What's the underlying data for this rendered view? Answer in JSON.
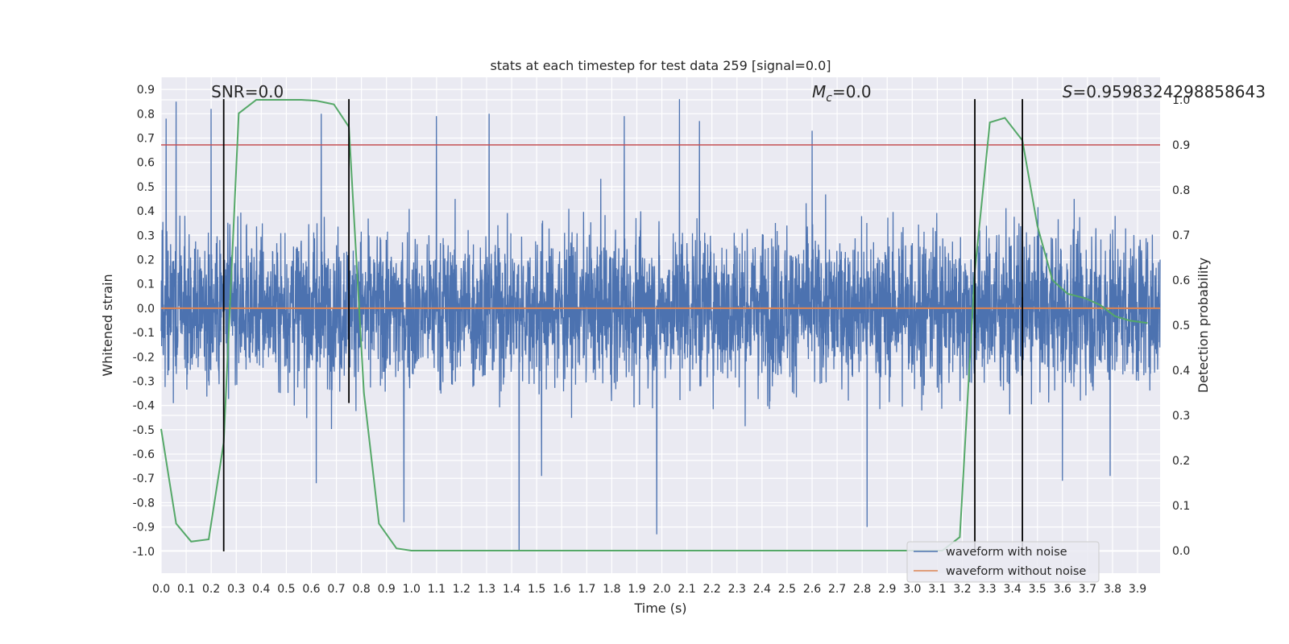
{
  "chart_data": {
    "type": "line",
    "title": "stats at each timestep for test data 259 [signal=0.0]",
    "xlabel": "Time (s)",
    "ylabel": "Whitened strain",
    "y2label": "Detection probability",
    "xlim": [
      0.0,
      3.99
    ],
    "ylim": [
      -1.09,
      0.95
    ],
    "y2lim": [
      -0.05,
      1.05
    ],
    "x_ticks": [
      "0.0",
      "0.1",
      "0.2",
      "0.3",
      "0.4",
      "0.5",
      "0.6",
      "0.7",
      "0.8",
      "0.9",
      "1.0",
      "1.1",
      "1.2",
      "1.3",
      "1.4",
      "1.5",
      "1.6",
      "1.7",
      "1.8",
      "1.9",
      "2.0",
      "2.1",
      "2.2",
      "2.3",
      "2.4",
      "2.5",
      "2.6",
      "2.7",
      "2.8",
      "2.9",
      "3.0",
      "3.1",
      "3.2",
      "3.3",
      "3.4",
      "3.5",
      "3.6",
      "3.7",
      "3.8",
      "3.9"
    ],
    "y_ticks": [
      "0.9",
      "0.8",
      "0.7",
      "0.6",
      "0.5",
      "0.4",
      "0.3",
      "0.2",
      "0.1",
      "0.0",
      "-0.1",
      "-0.2",
      "-0.3",
      "-0.4",
      "-0.5",
      "-0.6",
      "-0.7",
      "-0.8",
      "-0.9",
      "-1.0"
    ],
    "y2_ticks": [
      "1.0",
      "0.9",
      "0.8",
      "0.7",
      "0.6",
      "0.5",
      "0.4",
      "0.3",
      "0.2",
      "0.1",
      "0.0"
    ],
    "grid": true,
    "legend_position": "lower-right",
    "series": [
      {
        "name": "waveform with noise",
        "axis": "left",
        "color": "#4c72b0",
        "style": "dense-noise",
        "amplitude_range": [
          -1.0,
          0.86
        ]
      },
      {
        "name": "waveform without noise",
        "axis": "left",
        "color": "#dd8452",
        "x": [
          0.0,
          3.99
        ],
        "y": [
          0.0,
          0.0
        ]
      },
      {
        "name": "",
        "axis": "right",
        "color": "#55a868",
        "x": [
          0.0,
          0.06,
          0.12,
          0.19,
          0.25,
          0.31,
          0.38,
          0.44,
          0.5,
          0.56,
          0.62,
          0.69,
          0.75,
          0.81,
          0.87,
          0.94,
          1.0,
          3.12,
          3.19,
          3.25,
          3.31,
          3.37,
          3.44,
          3.5,
          3.56,
          3.62,
          3.69,
          3.75,
          3.81,
          3.87,
          3.94
        ],
        "y": [
          0.27,
          0.06,
          0.02,
          0.025,
          0.24,
          0.97,
          1.0,
          1.0,
          1.0,
          1.0,
          0.998,
          0.99,
          0.94,
          0.35,
          0.06,
          0.005,
          0.0,
          0.0,
          0.03,
          0.62,
          0.95,
          0.96,
          0.91,
          0.72,
          0.6,
          0.57,
          0.56,
          0.545,
          0.52,
          0.51,
          0.505
        ]
      }
    ],
    "thresholds": [
      {
        "axis": "right",
        "y": 0.9,
        "color": "#c44e52"
      }
    ],
    "vertical_lines": [
      {
        "x": 0.25,
        "y_range": [
          -1.0,
          0.86
        ]
      },
      {
        "x": 0.75,
        "y_range": [
          -0.39,
          0.86
        ]
      },
      {
        "x": 3.25,
        "y_range": [
          -1.0,
          0.86
        ]
      },
      {
        "x": 3.44,
        "y_range": [
          -1.0,
          0.86
        ]
      }
    ],
    "annotations": [
      {
        "text": "SNR=0.0",
        "x": 0.2,
        "y": 0.89
      },
      {
        "text_main": "M",
        "text_sub": "c",
        "text_rest": "=0.0",
        "x": 2.6,
        "y": 0.89
      },
      {
        "text_main": "S",
        "text_rest": "=0.9598324298858643",
        "x": 3.6,
        "y": 0.89
      }
    ]
  }
}
